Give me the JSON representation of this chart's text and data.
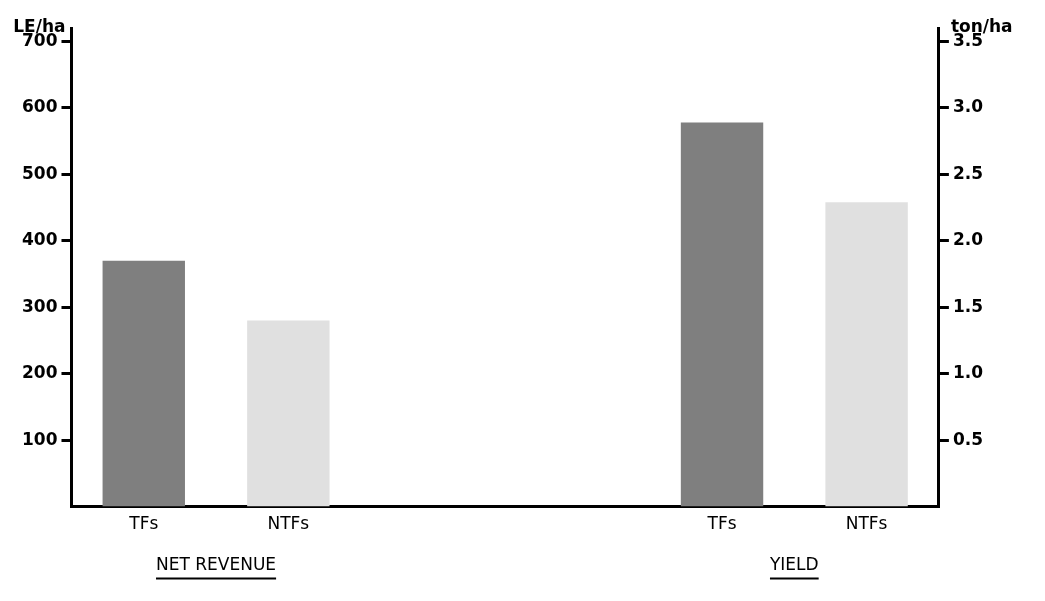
{
  "chart_data": {
    "type": "bar",
    "ylabel": "LE/ha",
    "y2label": "ton/ha",
    "categories": [
      "TFs",
      "NTFs",
      null,
      null,
      "TFs",
      "NTFs"
    ],
    "series": [
      {
        "axis": "y",
        "colors": [
          "#7f7f7f",
          "#e0e0e0",
          null,
          null,
          null,
          null
        ],
        "values": [
          370,
          280,
          null,
          null,
          null,
          null
        ]
      },
      {
        "axis": "y2",
        "colors": [
          null,
          null,
          null,
          null,
          "#7f7f7f",
          "#e0e0e0"
        ],
        "values": [
          null,
          null,
          null,
          null,
          2.89,
          2.29
        ]
      }
    ],
    "ylim": [
      0,
      720
    ],
    "yticks": [
      100,
      200,
      300,
      400,
      500,
      600,
      700
    ],
    "y2lim": [
      0,
      3.6
    ],
    "y2ticks": [
      0.5,
      {
        "value": 1,
        "label": "1.0"
      },
      1.5,
      {
        "value": 2,
        "label": "2.0"
      },
      2.5,
      {
        "value": 3,
        "label": "3.0"
      },
      3.5
    ],
    "annotations": [
      "NET REVENUE",
      "YIELD"
    ],
    "grid": false,
    "legend": false
  }
}
